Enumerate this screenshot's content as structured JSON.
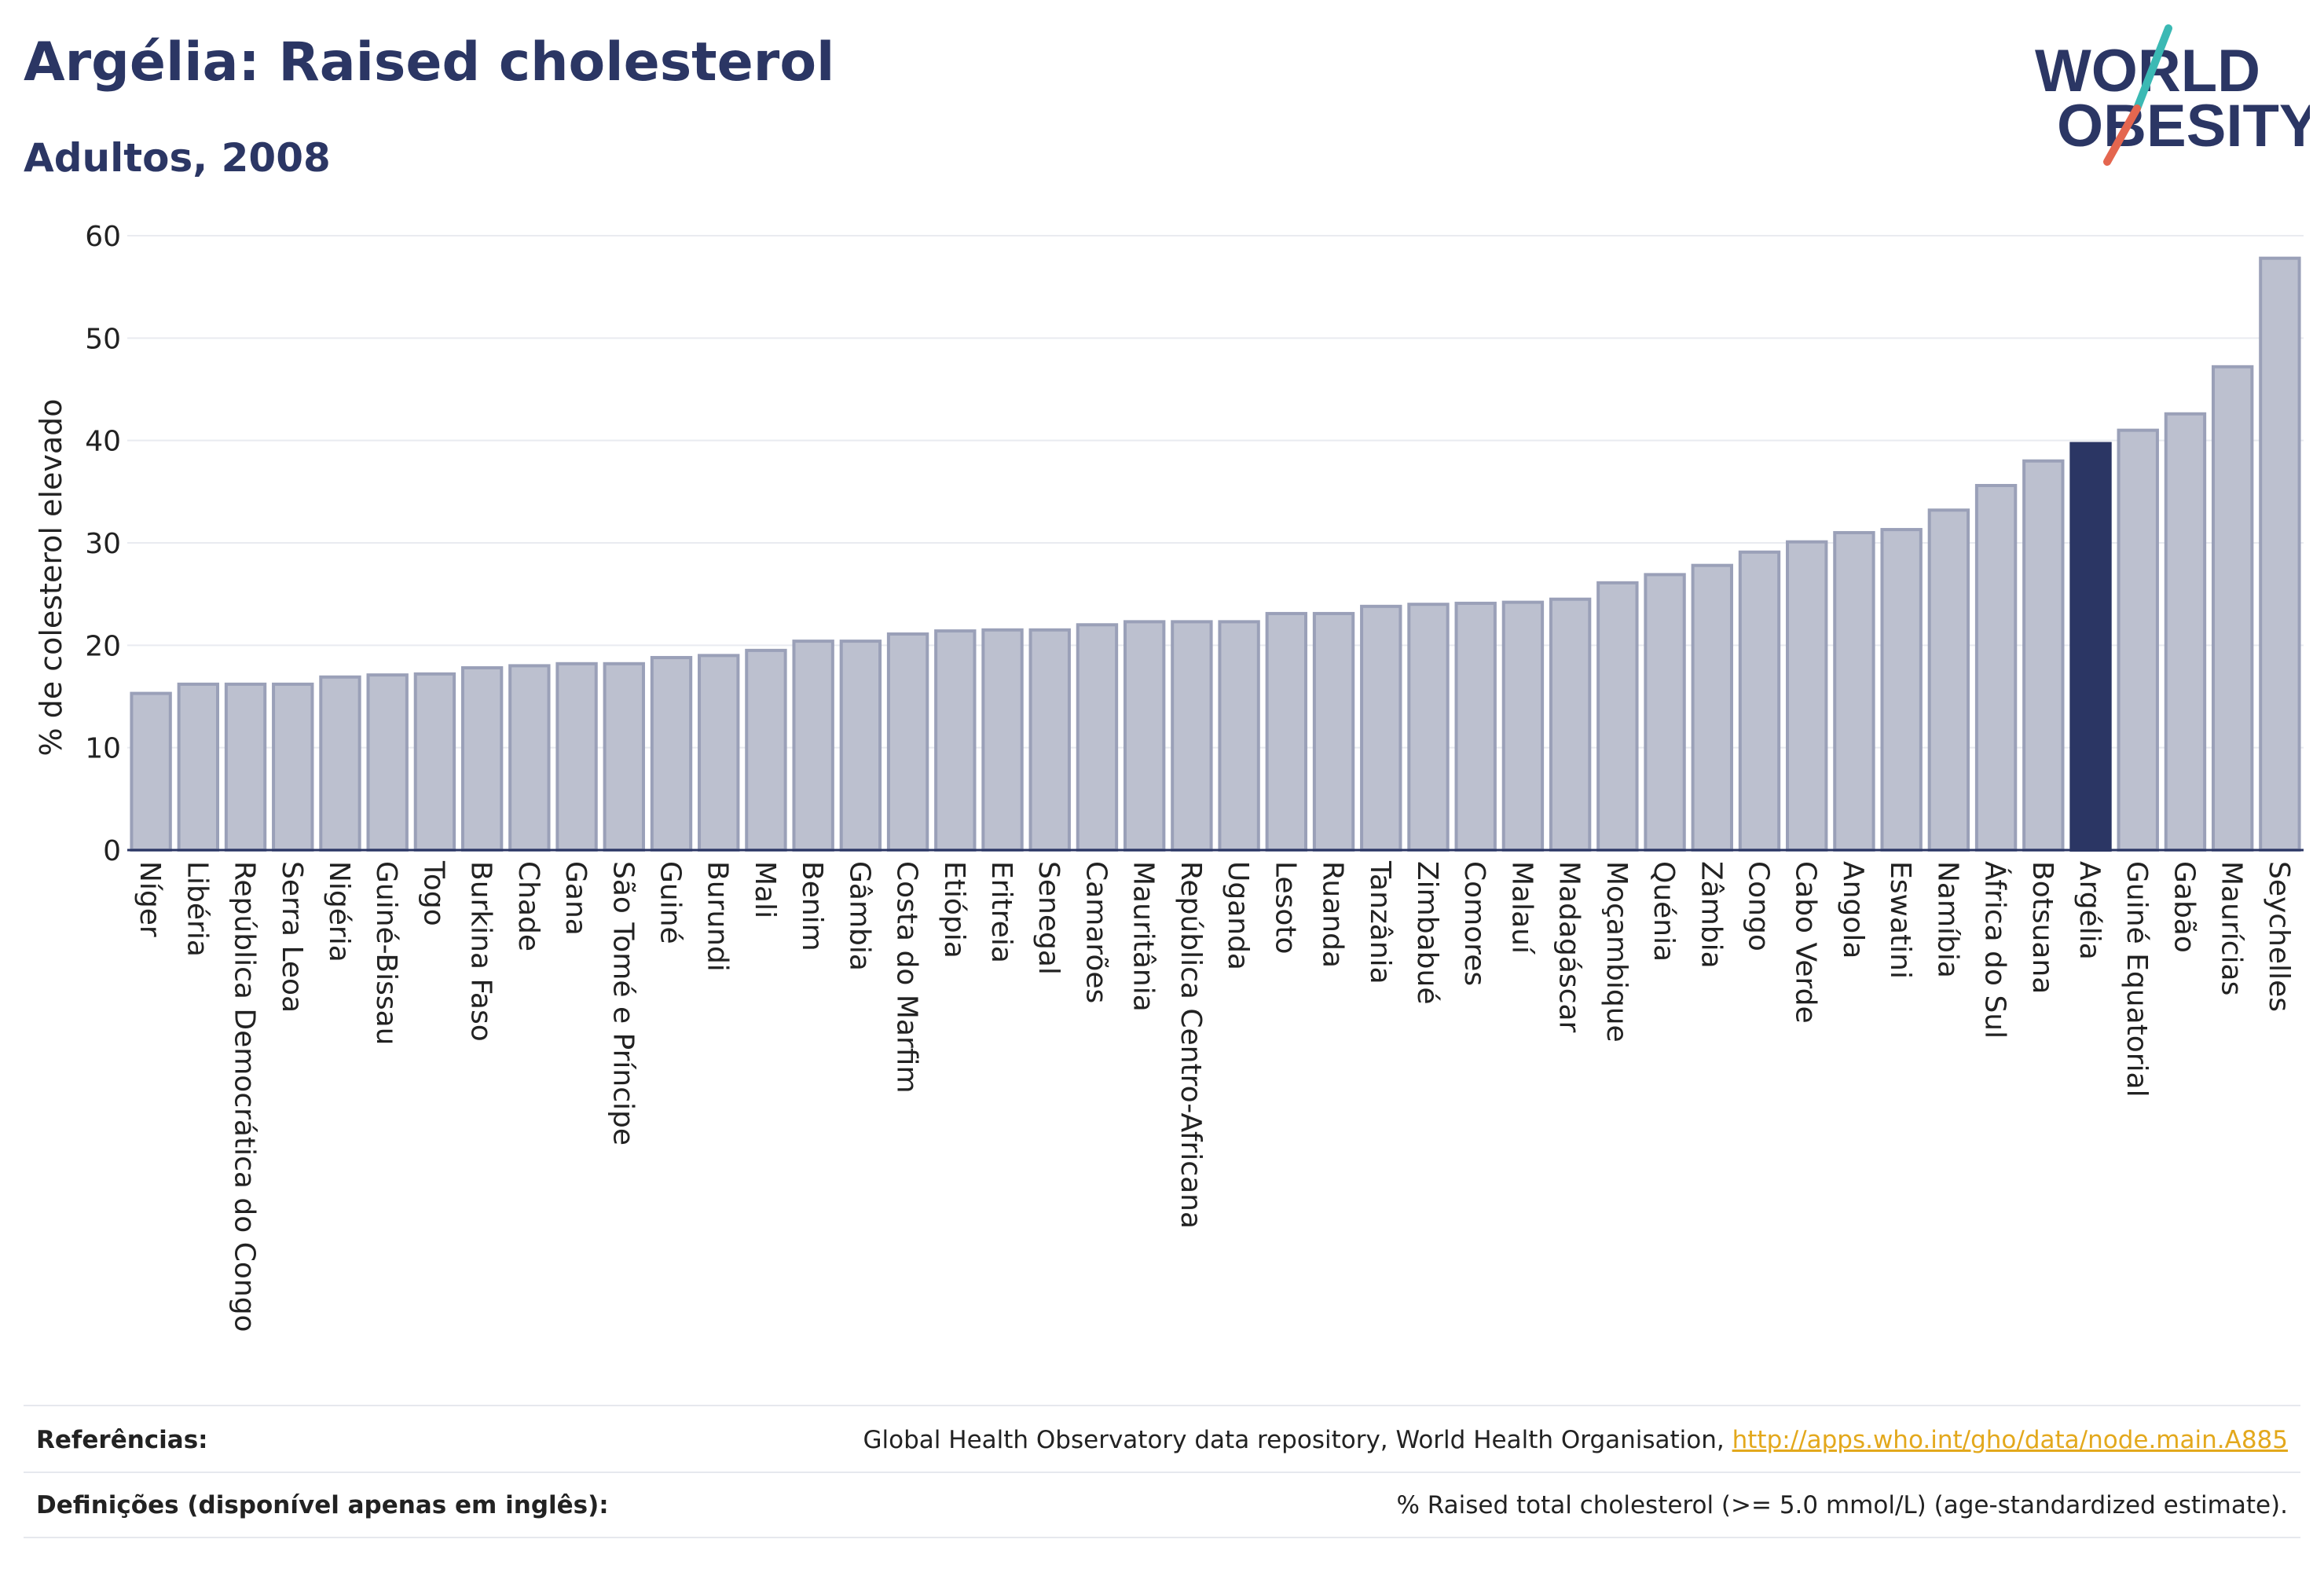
{
  "header": {
    "title": "Argélia: Raised cholesterol",
    "subtitle": "Adultos, 2008"
  },
  "logo": {
    "line1": "WORLD",
    "line2": "OBESITY",
    "colors": {
      "text": "#2b3664",
      "slash_top": "#3bb9b4",
      "slash_bottom": "#e4664f"
    }
  },
  "chart_data": {
    "type": "bar",
    "ylabel": "% de colesterol elevado",
    "ylim": [
      0,
      60
    ],
    "yticks": [
      0,
      10,
      20,
      30,
      40,
      50,
      60
    ],
    "grid": true,
    "highlight": "Argélia",
    "colors": {
      "bar_fill": "#bcc0cf",
      "bar_stroke": "#9aa0b8",
      "highlight_fill": "#2b3664",
      "highlight_stroke": "#2b3664",
      "grid": "#e9ebf0",
      "axis": "#2b3664"
    },
    "categories": [
      "Níger",
      "Libéria",
      "República Democrática do Congo",
      "Serra Leoa",
      "Nigéria",
      "Guiné-Bissau",
      "Togo",
      "Burkina Faso",
      "Chade",
      "Gana",
      "São Tomé e Príncipe",
      "Guiné",
      "Burundi",
      "Mali",
      "Benim",
      "Gâmbia",
      "Costa do Marfim",
      "Etiópia",
      "Eritreia",
      "Senegal",
      "Camarões",
      "Mauritânia",
      "República Centro-Africana",
      "Uganda",
      "Lesoto",
      "Ruanda",
      "Tanzânia",
      "Zimbabué",
      "Comores",
      "Malauí",
      "Madagáscar",
      "Moçambique",
      "Quénia",
      "Zâmbia",
      "Congo",
      "Cabo Verde",
      "Angola",
      "Eswatini",
      "Namíbia",
      "África do Sul",
      "Botsuana",
      "Argélia",
      "Guiné Equatorial",
      "Gabão",
      "Maurícias",
      "Seychelles"
    ],
    "values": [
      15.3,
      16.2,
      16.2,
      16.2,
      16.9,
      17.1,
      17.2,
      17.8,
      18.0,
      18.2,
      18.2,
      18.8,
      19.0,
      19.5,
      20.4,
      20.4,
      21.1,
      21.4,
      21.5,
      21.5,
      22.0,
      22.3,
      22.3,
      22.3,
      23.1,
      23.1,
      23.8,
      24.0,
      24.1,
      24.2,
      24.5,
      26.1,
      26.9,
      27.8,
      29.1,
      30.1,
      31.0,
      31.3,
      33.2,
      35.6,
      38.0,
      39.7,
      41.0,
      42.6,
      47.2,
      57.8
    ]
  },
  "footer": {
    "references_label": "Referências:",
    "references_text": "Global Health Observatory data repository, World Health Organisation, ",
    "references_link": "http://apps.who.int/gho/data/node.main.A885",
    "definitions_label": "Definições (disponível apenas em inglês):",
    "definitions_text": "% Raised total cholesterol (>= 5.0 mmol/L) (age-standardized estimate)."
  }
}
